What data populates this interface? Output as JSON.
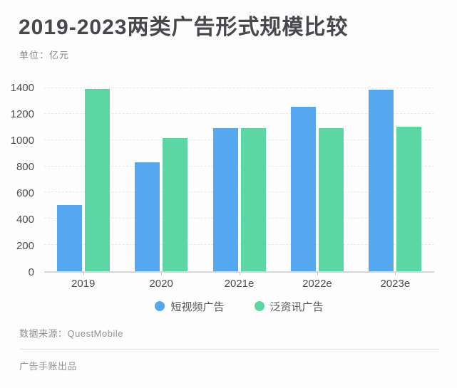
{
  "header": {
    "title": "2019-2023两类广告形式规模比较",
    "subtitle": "单位：亿元"
  },
  "chart_data": {
    "type": "bar",
    "title": "2019-2023两类广告形式规模比较",
    "unit_label": "单位：亿元",
    "categories": [
      "2019",
      "2020",
      "2021e",
      "2022e",
      "2023e"
    ],
    "series": [
      {
        "name": "短视频广告",
        "color": "#55a8f0",
        "values": [
          505,
          830,
          1095,
          1255,
          1385
        ]
      },
      {
        "name": "泛资讯广告",
        "color": "#5cd6a3",
        "values": [
          1390,
          1015,
          1095,
          1095,
          1105
        ]
      }
    ],
    "xlabel": "",
    "ylabel": "亿元",
    "ylim": [
      0,
      1400
    ],
    "yticks": [
      0,
      200,
      400,
      600,
      800,
      1000,
      1200,
      1400
    ],
    "grid": true,
    "gridline_style": "dashed",
    "legend_position": "bottom"
  },
  "footer": {
    "source": "数据来源：QuestMobile",
    "credit": "广告手账出品"
  }
}
